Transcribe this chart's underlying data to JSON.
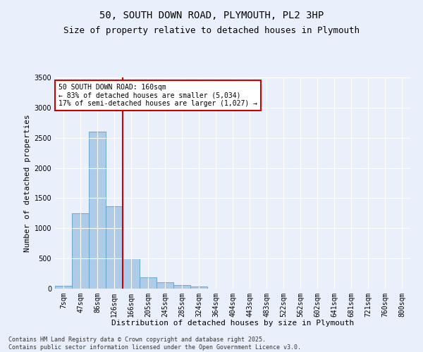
{
  "title": "50, SOUTH DOWN ROAD, PLYMOUTH, PL2 3HP",
  "subtitle": "Size of property relative to detached houses in Plymouth",
  "xlabel": "Distribution of detached houses by size in Plymouth",
  "ylabel": "Number of detached properties",
  "categories": [
    "7sqm",
    "47sqm",
    "86sqm",
    "126sqm",
    "166sqm",
    "205sqm",
    "245sqm",
    "285sqm",
    "324sqm",
    "364sqm",
    "404sqm",
    "443sqm",
    "483sqm",
    "522sqm",
    "562sqm",
    "602sqm",
    "641sqm",
    "681sqm",
    "721sqm",
    "760sqm",
    "800sqm"
  ],
  "values": [
    50,
    1250,
    2600,
    1370,
    500,
    190,
    110,
    55,
    30,
    5,
    0,
    0,
    0,
    0,
    0,
    0,
    0,
    0,
    0,
    0,
    0
  ],
  "bar_color": "#aecce8",
  "bar_edge_color": "#5a9ec9",
  "vline_x_index": 4,
  "vline_color": "#cc0000",
  "annotation_text": "50 SOUTH DOWN ROAD: 160sqm\n← 83% of detached houses are smaller (5,034)\n17% of semi-detached houses are larger (1,027) →",
  "annotation_box_color": "#ffffff",
  "annotation_box_edge": "#cc0000",
  "ylim": [
    0,
    3500
  ],
  "yticks": [
    0,
    500,
    1000,
    1500,
    2000,
    2500,
    3000,
    3500
  ],
  "bg_color": "#eaf0fb",
  "grid_color": "#ffffff",
  "footer": "Contains HM Land Registry data © Crown copyright and database right 2025.\nContains public sector information licensed under the Open Government Licence v3.0.",
  "title_fontsize": 10,
  "subtitle_fontsize": 9,
  "xlabel_fontsize": 8,
  "ylabel_fontsize": 8,
  "tick_fontsize": 7,
  "annotation_fontsize": 7,
  "footer_fontsize": 6
}
